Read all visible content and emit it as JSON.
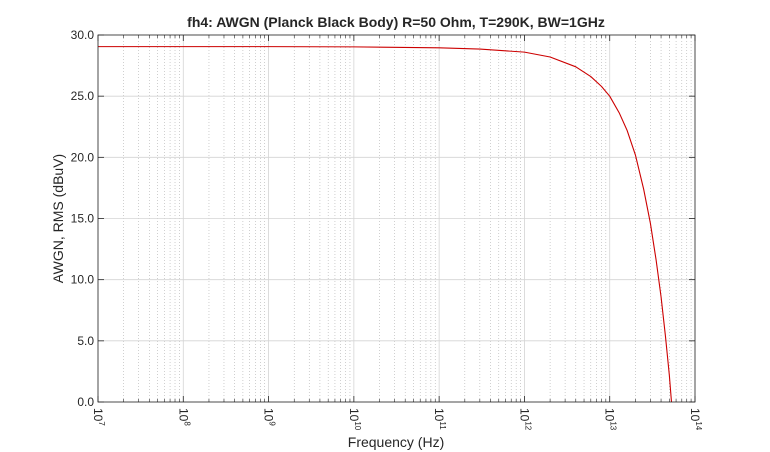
{
  "chart_data": {
    "type": "line",
    "title": "fh4: AWGN (Planck Black Body) R=50 Ohm, T=290K, BW=1GHz",
    "xlabel": "Frequency (Hz)",
    "ylabel": "AWGN, RMS (dBuV)",
    "xscale": "log",
    "xlim": [
      10000000,
      100000000000000
    ],
    "ylim": [
      0,
      30
    ],
    "grid": true,
    "x_tick_labels": [
      {
        "base": "10",
        "exp": "7"
      },
      {
        "base": "10",
        "exp": "8"
      },
      {
        "base": "10",
        "exp": "9"
      },
      {
        "base": "10",
        "exp": "10"
      },
      {
        "base": "10",
        "exp": "11"
      },
      {
        "base": "10",
        "exp": "12"
      },
      {
        "base": "10",
        "exp": "13"
      },
      {
        "base": "10",
        "exp": "14"
      }
    ],
    "y_tick_labels": [
      "0.0",
      "5.0",
      "10.0",
      "15.0",
      "20.0",
      "25.0",
      "30.0"
    ],
    "y_ticks": [
      0,
      5,
      10,
      15,
      20,
      25,
      30
    ],
    "series": [
      {
        "color": "#cc0000",
        "x": [
          10000000,
          100000000,
          1000000000,
          10000000000,
          100000000000,
          300000000000,
          1000000000000,
          2000000000000,
          4000000000000,
          6000000000000,
          8000000000000,
          10000000000000,
          13000000000000,
          16000000000000,
          20000000000000,
          25000000000000,
          30000000000000,
          35000000000000,
          40000000000000,
          45000000000000,
          50000000000000,
          53000000000000
        ],
        "y": [
          29.05,
          29.05,
          29.05,
          29.03,
          28.95,
          28.85,
          28.6,
          28.2,
          27.4,
          26.6,
          25.8,
          25.0,
          23.6,
          22.2,
          20.2,
          17.4,
          14.6,
          11.6,
          8.6,
          5.4,
          2.2,
          0.0
        ]
      }
    ]
  }
}
